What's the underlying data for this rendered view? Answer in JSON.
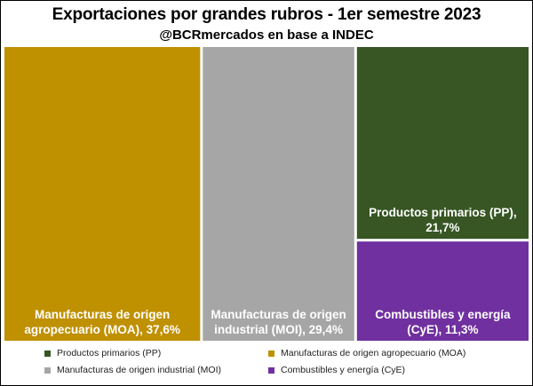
{
  "chart_data": {
    "type": "treemap",
    "title": "Exportaciones por grandes rubros - 1er semestre 2023",
    "subtitle": "@BCRmercados en base a INDEC",
    "series": [
      {
        "name": "Manufacturas de origen agropecuario (MOA)",
        "value": 37.6,
        "label_lines": [
          "Manufacturas de origen",
          "agropecuario (MOA), 37,6%"
        ],
        "color": "#BF9000"
      },
      {
        "name": "Manufacturas de origen industrial (MOI)",
        "value": 29.4,
        "label_lines": [
          "Manufacturas de origen",
          "industrial (MOI), 29,4%"
        ],
        "color": "#A6A6A6"
      },
      {
        "name": "Productos primarios (PP)",
        "value": 21.7,
        "label_lines": [
          "Productos primarios (PP),",
          "21,7%"
        ],
        "color": "#375623"
      },
      {
        "name": "Combustibles y energía (CyE)",
        "value": 11.3,
        "label_lines": [
          "Combustibles y energía",
          "(CyE), 11,3%"
        ],
        "color": "#7030A0"
      }
    ],
    "legend": {
      "position": "bottom",
      "entries": [
        {
          "label": "Productos primarios (PP)",
          "color": "#375623"
        },
        {
          "label": "Manufacturas de origen agropecuario (MOA)",
          "color": "#BF9000"
        },
        {
          "label": "Manufacturas de origen industrial (MOI)",
          "color": "#A6A6A6"
        },
        {
          "label": "Combustibles y energía (CyE)",
          "color": "#7030A0"
        }
      ]
    }
  }
}
